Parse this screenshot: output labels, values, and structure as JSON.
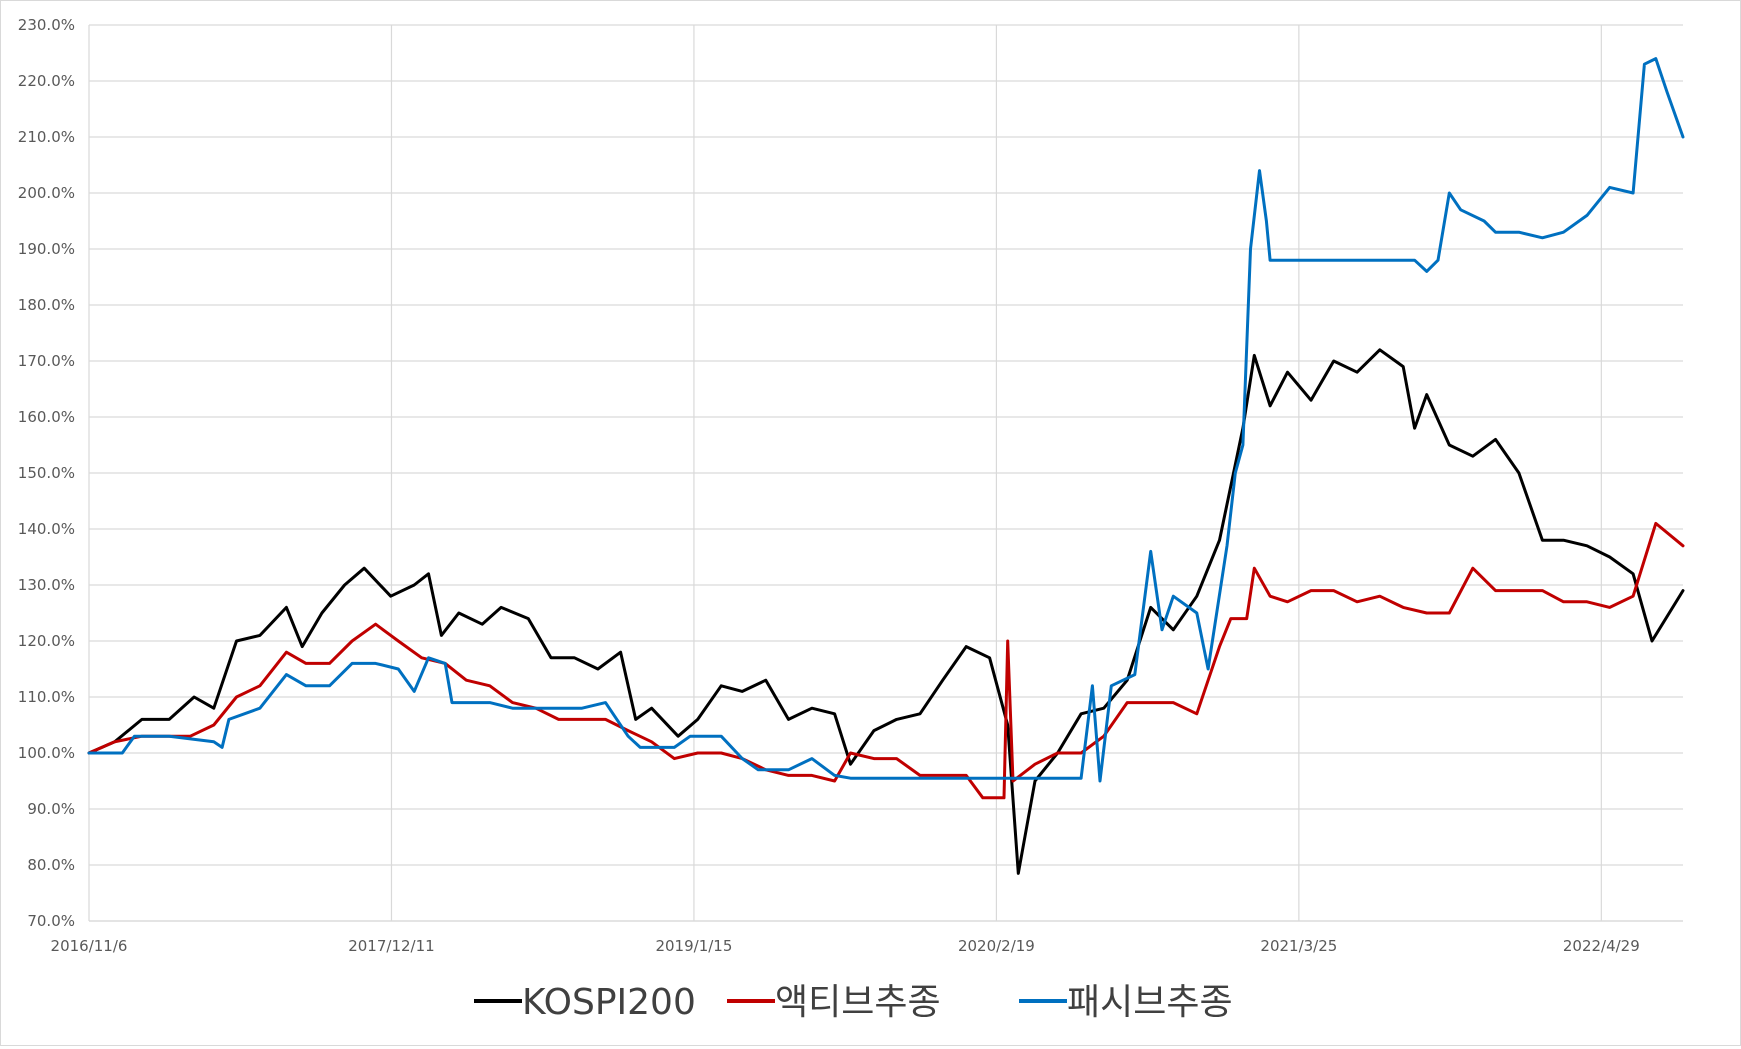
{
  "chart_data": {
    "type": "line",
    "title": "",
    "xlabel": "",
    "ylabel": "",
    "ylim": [
      70,
      230
    ],
    "y_ticks": [
      "70.0%",
      "80.0%",
      "90.0%",
      "100.0%",
      "110.0%",
      "120.0%",
      "130.0%",
      "140.0%",
      "150.0%",
      "160.0%",
      "170.0%",
      "180.0%",
      "190.0%",
      "200.0%",
      "210.0%",
      "220.0%",
      "230.0%"
    ],
    "x_ticks": [
      "2016/11/6",
      "2017/12/11",
      "2019/1/15",
      "2020/2/19",
      "2021/3/25",
      "2022/4/29"
    ],
    "x_range": [
      "2016/11/6",
      "2022/8/15"
    ],
    "grid": true,
    "legend_position": "bottom",
    "series": [
      {
        "name": "KOSPI200",
        "color": "#000000",
        "points": [
          [
            "2016/11/6",
            100
          ],
          [
            "2016/12/10",
            102
          ],
          [
            "2017/1/15",
            106
          ],
          [
            "2017/2/20",
            106
          ],
          [
            "2017/3/25",
            110
          ],
          [
            "2017/4/20",
            108
          ],
          [
            "2017/5/20",
            120
          ],
          [
            "2017/6/20",
            121
          ],
          [
            "2017/7/25",
            126
          ],
          [
            "2017/8/15",
            119
          ],
          [
            "2017/9/10",
            125
          ],
          [
            "2017/10/10",
            130
          ],
          [
            "2017/11/5",
            133
          ],
          [
            "2017/12/10",
            128
          ],
          [
            "2018/1/10",
            130
          ],
          [
            "2018/1/29",
            132
          ],
          [
            "2018/2/15",
            121
          ],
          [
            "2018/3/10",
            125
          ],
          [
            "2018/4/10",
            123
          ],
          [
            "2018/5/5",
            126
          ],
          [
            "2018/6/10",
            124
          ],
          [
            "2018/7/10",
            117
          ],
          [
            "2018/8/10",
            117
          ],
          [
            "2018/9/10",
            115
          ],
          [
            "2018/10/10",
            118
          ],
          [
            "2018/10/30",
            106
          ],
          [
            "2018/11/20",
            108
          ],
          [
            "2018/12/25",
            103
          ],
          [
            "2019/1/20",
            106
          ],
          [
            "2019/2/20",
            112
          ],
          [
            "2019/3/20",
            111
          ],
          [
            "2019/4/20",
            113
          ],
          [
            "2019/5/20",
            106
          ],
          [
            "2019/6/20",
            108
          ],
          [
            "2019/7/20",
            107
          ],
          [
            "2019/8/10",
            98
          ],
          [
            "2019/9/10",
            104
          ],
          [
            "2019/10/10",
            106
          ],
          [
            "2019/11/10",
            107
          ],
          [
            "2019/12/10",
            113
          ],
          [
            "2020/1/10",
            119
          ],
          [
            "2020/2/10",
            117
          ],
          [
            "2020/3/5",
            105
          ],
          [
            "2020/3/19",
            78.5
          ],
          [
            "2020/4/10",
            95
          ],
          [
            "2020/5/10",
            100
          ],
          [
            "2020/6/10",
            107
          ],
          [
            "2020/7/10",
            108
          ],
          [
            "2020/8/10",
            113
          ],
          [
            "2020/9/10",
            126
          ],
          [
            "2020/10/10",
            122
          ],
          [
            "2020/11/10",
            128
          ],
          [
            "2020/12/10",
            138
          ],
          [
            "2021/1/10",
            158
          ],
          [
            "2021/1/25",
            171
          ],
          [
            "2021/2/15",
            162
          ],
          [
            "2021/3/10",
            168
          ],
          [
            "2021/4/10",
            163
          ],
          [
            "2021/5/10",
            170
          ],
          [
            "2021/6/10",
            168
          ],
          [
            "2021/7/10",
            172
          ],
          [
            "2021/8/10",
            169
          ],
          [
            "2021/8/25",
            158
          ],
          [
            "2021/9/10",
            164
          ],
          [
            "2021/10/10",
            155
          ],
          [
            "2021/11/10",
            153
          ],
          [
            "2021/12/10",
            156
          ],
          [
            "2022/1/10",
            150
          ],
          [
            "2022/2/10",
            138
          ],
          [
            "2022/3/10",
            138
          ],
          [
            "2022/4/10",
            137
          ],
          [
            "2022/5/10",
            135
          ],
          [
            "2022/6/10",
            132
          ],
          [
            "2022/7/5",
            120
          ],
          [
            "2022/8/15",
            129
          ]
        ]
      },
      {
        "name": "액티브추종",
        "color": "#c00000",
        "points": [
          [
            "2016/11/6",
            100
          ],
          [
            "2016/12/10",
            102
          ],
          [
            "2017/1/15",
            103
          ],
          [
            "2017/3/20",
            103
          ],
          [
            "2017/4/20",
            105
          ],
          [
            "2017/5/20",
            110
          ],
          [
            "2017/6/20",
            112
          ],
          [
            "2017/7/25",
            118
          ],
          [
            "2017/8/20",
            116
          ],
          [
            "2017/9/20",
            116
          ],
          [
            "2017/10/20",
            120
          ],
          [
            "2017/11/20",
            123
          ],
          [
            "2017/12/20",
            120
          ],
          [
            "2018/1/20",
            117
          ],
          [
            "2018/2/20",
            116
          ],
          [
            "2018/3/20",
            113
          ],
          [
            "2018/4/20",
            112
          ],
          [
            "2018/5/20",
            109
          ],
          [
            "2018/6/20",
            108
          ],
          [
            "2018/7/20",
            106
          ],
          [
            "2018/8/20",
            106
          ],
          [
            "2018/9/20",
            106
          ],
          [
            "2018/10/20",
            104
          ],
          [
            "2018/11/20",
            102
          ],
          [
            "2018/12/20",
            99
          ],
          [
            "2019/1/20",
            100
          ],
          [
            "2019/2/20",
            100
          ],
          [
            "2019/3/20",
            99
          ],
          [
            "2019/4/20",
            97
          ],
          [
            "2019/5/20",
            96
          ],
          [
            "2019/6/20",
            96
          ],
          [
            "2019/7/20",
            95
          ],
          [
            "2019/8/10",
            100
          ],
          [
            "2019/9/10",
            99
          ],
          [
            "2019/10/10",
            99
          ],
          [
            "2019/11/10",
            96
          ],
          [
            "2019/12/10",
            96
          ],
          [
            "2020/1/10",
            96
          ],
          [
            "2020/2/1",
            92
          ],
          [
            "2020/2/29",
            92
          ],
          [
            "2020/3/5",
            120
          ],
          [
            "2020/3/12",
            95
          ],
          [
            "2020/4/10",
            98
          ],
          [
            "2020/5/10",
            100
          ],
          [
            "2020/6/10",
            100
          ],
          [
            "2020/7/10",
            103
          ],
          [
            "2020/8/10",
            109
          ],
          [
            "2020/9/10",
            109
          ],
          [
            "2020/10/10",
            109
          ],
          [
            "2020/11/10",
            107
          ],
          [
            "2020/12/10",
            119
          ],
          [
            "2020/12/25",
            124
          ],
          [
            "2021/1/15",
            124
          ],
          [
            "2021/1/25",
            133
          ],
          [
            "2021/2/15",
            128
          ],
          [
            "2021/3/10",
            127
          ],
          [
            "2021/4/10",
            129
          ],
          [
            "2021/5/10",
            129
          ],
          [
            "2021/6/10",
            127
          ],
          [
            "2021/7/10",
            128
          ],
          [
            "2021/8/10",
            126
          ],
          [
            "2021/9/10",
            125
          ],
          [
            "2021/10/10",
            125
          ],
          [
            "2021/11/10",
            133
          ],
          [
            "2021/12/10",
            129
          ],
          [
            "2022/1/10",
            129
          ],
          [
            "2022/2/10",
            129
          ],
          [
            "2022/3/10",
            127
          ],
          [
            "2022/4/10",
            127
          ],
          [
            "2022/5/10",
            126
          ],
          [
            "2022/6/10",
            128
          ],
          [
            "2022/7/10",
            141
          ],
          [
            "2022/8/15",
            137
          ]
        ]
      },
      {
        "name": "패시브추종",
        "color": "#0070c0",
        "points": [
          [
            "2016/11/6",
            100
          ],
          [
            "2016/12/20",
            100
          ],
          [
            "2017/1/5",
            103
          ],
          [
            "2017/2/20",
            103
          ],
          [
            "2017/4/20",
            102
          ],
          [
            "2017/5/1",
            101
          ],
          [
            "2017/5/10",
            106
          ],
          [
            "2017/6/20",
            108
          ],
          [
            "2017/7/25",
            114
          ],
          [
            "2017/8/20",
            112
          ],
          [
            "2017/9/20",
            112
          ],
          [
            "2017/10/20",
            116
          ],
          [
            "2017/11/20",
            116
          ],
          [
            "2017/12/20",
            115
          ],
          [
            "2018/1/10",
            111
          ],
          [
            "2018/1/29",
            117
          ],
          [
            "2018/2/20",
            116
          ],
          [
            "2018/3/1",
            109
          ],
          [
            "2018/4/20",
            109
          ],
          [
            "2018/5/20",
            108
          ],
          [
            "2018/7/20",
            108
          ],
          [
            "2018/8/20",
            108
          ],
          [
            "2018/9/20",
            109
          ],
          [
            "2018/10/20",
            103
          ],
          [
            "2018/11/5",
            101
          ],
          [
            "2018/12/20",
            101
          ],
          [
            "2019/1/10",
            103
          ],
          [
            "2019/2/20",
            103
          ],
          [
            "2019/3/20",
            99
          ],
          [
            "2019/4/10",
            97
          ],
          [
            "2019/5/20",
            97
          ],
          [
            "2019/6/20",
            99
          ],
          [
            "2019/7/20",
            96
          ],
          [
            "2019/8/10",
            95.5
          ],
          [
            "2019/10/10",
            95.5
          ],
          [
            "2019/12/10",
            95.5
          ],
          [
            "2020/1/10",
            95.5
          ],
          [
            "2020/3/10",
            95.5
          ],
          [
            "2020/4/10",
            95.5
          ],
          [
            "2020/5/10",
            95.5
          ],
          [
            "2020/6/10",
            95.5
          ],
          [
            "2020/6/25",
            112
          ],
          [
            "2020/7/5",
            95
          ],
          [
            "2020/7/20",
            112
          ],
          [
            "2020/8/20",
            114
          ],
          [
            "2020/9/10",
            136
          ],
          [
            "2020/9/25",
            122
          ],
          [
            "2020/10/10",
            128
          ],
          [
            "2020/11/10",
            125
          ],
          [
            "2020/11/25",
            115
          ],
          [
            "2020/12/20",
            137
          ],
          [
            "2020/12/31",
            150
          ],
          [
            "2021/1/10",
            155
          ],
          [
            "2021/1/20",
            190
          ],
          [
            "2021/2/1",
            204
          ],
          [
            "2021/2/10",
            195
          ],
          [
            "2021/2/15",
            188
          ],
          [
            "2021/3/25",
            188
          ],
          [
            "2021/5/10",
            188
          ],
          [
            "2021/6/10",
            188
          ],
          [
            "2021/7/10",
            188
          ],
          [
            "2021/8/25",
            188
          ],
          [
            "2021/9/10",
            186
          ],
          [
            "2021/9/25",
            188
          ],
          [
            "2021/10/10",
            200
          ],
          [
            "2021/10/25",
            197
          ],
          [
            "2021/11/25",
            195
          ],
          [
            "2021/12/10",
            193
          ],
          [
            "2022/1/10",
            193
          ],
          [
            "2022/2/10",
            192
          ],
          [
            "2022/3/10",
            193
          ],
          [
            "2022/4/10",
            196
          ],
          [
            "2022/5/10",
            201
          ],
          [
            "2022/6/10",
            200
          ],
          [
            "2022/6/25",
            223
          ],
          [
            "2022/7/10",
            224
          ],
          [
            "2022/7/25",
            218
          ],
          [
            "2022/8/15",
            210
          ]
        ]
      }
    ]
  }
}
